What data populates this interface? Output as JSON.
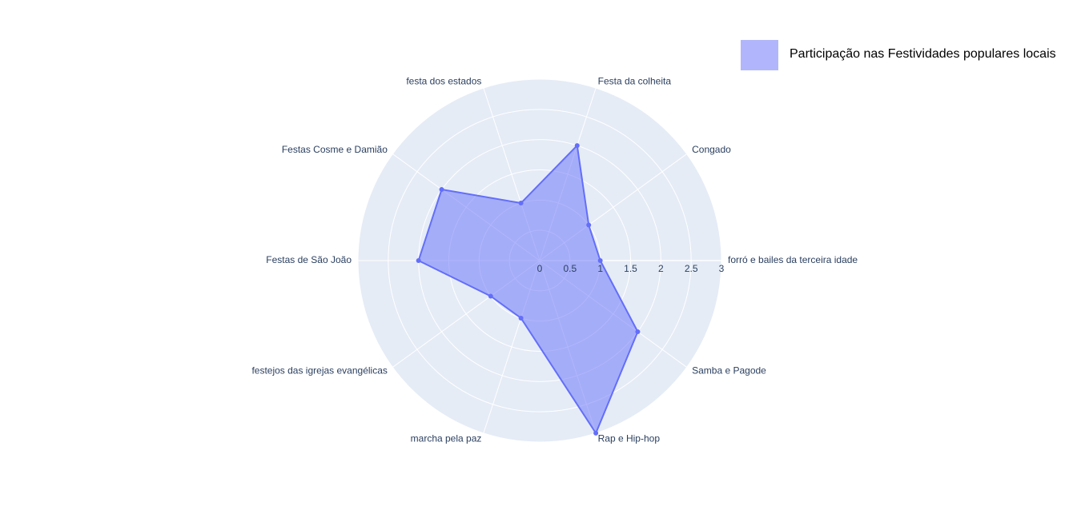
{
  "chart_data": {
    "type": "radar",
    "categories": [
      "forró e bailes da terceira idade",
      "Congado",
      "Festa da colheita",
      "festa dos estados",
      "Festas Cosme e Damião",
      "Festas de São João",
      "festejos das igrejas evangélicas",
      "marcha pela paz",
      "Rap e Hip-hop",
      "Samba e Pagode"
    ],
    "series": [
      {
        "name": "Participação nas Festividades populares locais",
        "color": "#636efa",
        "values": [
          1,
          1,
          2,
          1,
          2,
          2,
          1,
          1,
          3,
          2
        ]
      }
    ],
    "rlim": [
      0,
      3
    ],
    "rticks": [
      0,
      0.5,
      1,
      1.5,
      2,
      2.5,
      3
    ],
    "grid": true,
    "legend": "top-right"
  }
}
